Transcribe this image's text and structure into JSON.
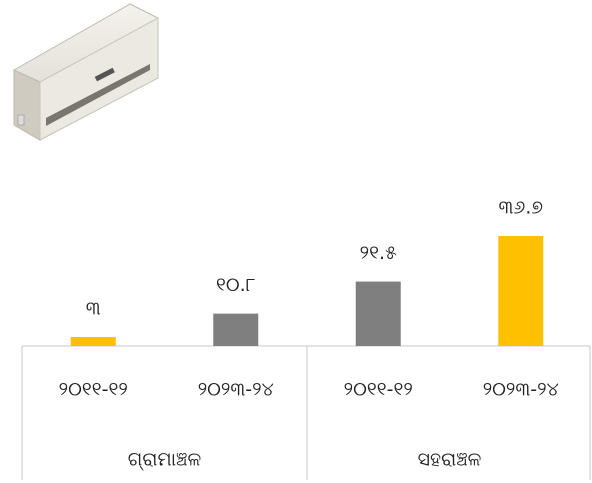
{
  "chart_data": {
    "type": "bar",
    "categories": [
      "୨୦୧୧-୧୨",
      "୨୦୨୩-୨୪",
      "୨୦୧୧-୧୨",
      "୨୦୨୩-୨୪"
    ],
    "groups": [
      "ଗ୍ରାମାଞ୍ଚଳ",
      "ସହରାଞ୍ଚଳ"
    ],
    "values": [
      3,
      10.8,
      21.5,
      36.7
    ],
    "value_labels": [
      "୩",
      "୧୦.୮",
      "୨୧.୫",
      "୩୬.୭"
    ],
    "colors": [
      "#ffc000",
      "#7f7f7f",
      "#7f7f7f",
      "#ffc000"
    ]
  }
}
